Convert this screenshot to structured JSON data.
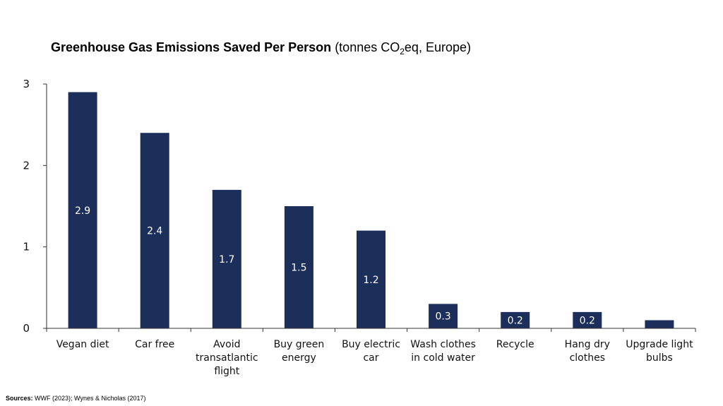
{
  "colors": {
    "bar": "#1c2f5b",
    "axis": "#333333",
    "label_on_bar": "#ffffff"
  },
  "title": {
    "main": "Greenhouse Gas Emissions Saved Per Person",
    "sub_prefix": "(tonnes CO",
    "sub_subscript": "2",
    "sub_suffix": "eq, Europe)"
  },
  "sources": {
    "label": "Sources:",
    "text": "WWF (2023); Wynes & Nicholas (2017)"
  },
  "chart_data": {
    "type": "bar",
    "title": "Greenhouse Gas Emissions Saved Per Person (tonnes CO2eq, Europe)",
    "xlabel": "",
    "ylabel": "",
    "ylim": [
      0,
      3
    ],
    "yticks": [
      0,
      1,
      2,
      3
    ],
    "grid": false,
    "categories": [
      [
        "Vegan diet"
      ],
      [
        "Car free"
      ],
      [
        "Avoid",
        "transatlantic",
        "flight"
      ],
      [
        "Buy green",
        "energy"
      ],
      [
        "Buy electric",
        "car"
      ],
      [
        "Wash clothes",
        "in cold water"
      ],
      [
        "Recycle"
      ],
      [
        "Hang dry",
        "clothes"
      ],
      [
        "Upgrade light",
        "bulbs"
      ]
    ],
    "values": [
      2.9,
      2.4,
      1.7,
      1.5,
      1.2,
      0.3,
      0.2,
      0.2,
      0.1
    ],
    "data_labels": [
      "2.9",
      "2.4",
      "1.7",
      "1.5",
      "1.2",
      "0.3",
      "0.2",
      "0.2",
      ""
    ]
  }
}
